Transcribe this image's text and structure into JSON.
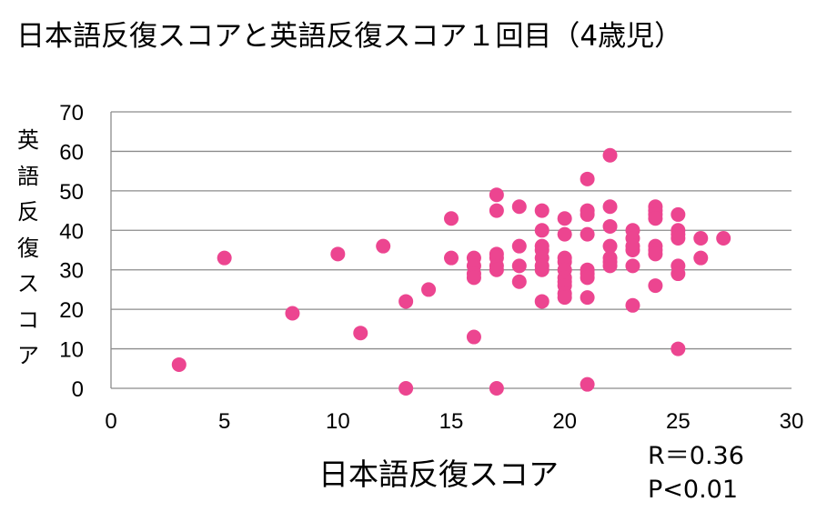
{
  "chart_data": {
    "type": "scatter",
    "title": "日本語反復スコアと英語反復スコア１回目（4歳児）",
    "xlabel": "日本語反復スコア",
    "ylabel": "英語反復スコア",
    "xlim": [
      0,
      30
    ],
    "ylim": [
      0,
      70
    ],
    "xticks": [
      0,
      5,
      10,
      15,
      20,
      25,
      30
    ],
    "yticks": [
      0,
      10,
      20,
      30,
      40,
      50,
      60,
      70
    ],
    "grid": "horizontal",
    "marker_color": "#EC4590",
    "annotations": [
      "R＝0.36",
      "P<0.01"
    ],
    "points": [
      [
        3,
        6
      ],
      [
        5,
        33
      ],
      [
        8,
        19
      ],
      [
        10,
        34
      ],
      [
        11,
        14
      ],
      [
        12,
        36
      ],
      [
        13,
        22
      ],
      [
        13,
        0
      ],
      [
        14,
        25
      ],
      [
        15,
        43
      ],
      [
        15,
        33
      ],
      [
        16,
        33
      ],
      [
        16,
        31
      ],
      [
        16,
        29
      ],
      [
        16,
        28
      ],
      [
        16,
        13
      ],
      [
        17,
        49
      ],
      [
        17,
        45
      ],
      [
        17,
        34
      ],
      [
        17,
        33
      ],
      [
        17,
        31
      ],
      [
        17,
        30
      ],
      [
        17,
        0
      ],
      [
        18,
        46
      ],
      [
        18,
        36
      ],
      [
        18,
        31
      ],
      [
        18,
        27
      ],
      [
        19,
        45
      ],
      [
        19,
        40
      ],
      [
        19,
        36
      ],
      [
        19,
        35
      ],
      [
        19,
        33
      ],
      [
        19,
        31
      ],
      [
        19,
        30
      ],
      [
        19,
        22
      ],
      [
        20,
        43
      ],
      [
        20,
        39
      ],
      [
        20,
        33
      ],
      [
        20,
        32
      ],
      [
        20,
        30
      ],
      [
        20,
        28
      ],
      [
        20,
        27
      ],
      [
        20,
        26
      ],
      [
        20,
        24
      ],
      [
        20,
        23
      ],
      [
        21,
        53
      ],
      [
        21,
        45
      ],
      [
        21,
        44
      ],
      [
        21,
        39
      ],
      [
        21,
        30
      ],
      [
        21,
        29
      ],
      [
        21,
        28
      ],
      [
        21,
        23
      ],
      [
        21,
        1
      ],
      [
        22,
        59
      ],
      [
        22,
        46
      ],
      [
        22,
        41
      ],
      [
        22,
        36
      ],
      [
        22,
        33
      ],
      [
        22,
        32
      ],
      [
        22,
        31
      ],
      [
        23,
        40
      ],
      [
        23,
        38
      ],
      [
        23,
        36
      ],
      [
        23,
        35
      ],
      [
        23,
        31
      ],
      [
        23,
        21
      ],
      [
        24,
        46
      ],
      [
        24,
        45
      ],
      [
        24,
        44
      ],
      [
        24,
        43
      ],
      [
        24,
        36
      ],
      [
        24,
        35
      ],
      [
        24,
        34
      ],
      [
        24,
        26
      ],
      [
        25,
        44
      ],
      [
        25,
        40
      ],
      [
        25,
        39
      ],
      [
        25,
        38
      ],
      [
        25,
        31
      ],
      [
        25,
        29
      ],
      [
        25,
        10
      ],
      [
        26,
        38
      ],
      [
        26,
        33
      ],
      [
        27,
        38
      ]
    ]
  }
}
